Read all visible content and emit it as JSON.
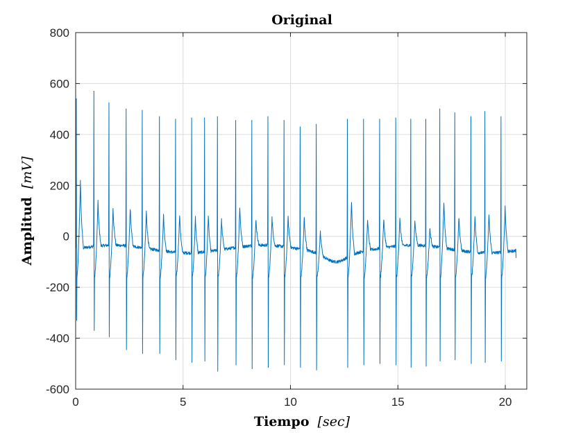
{
  "chart_data": {
    "type": "line",
    "title": "Original",
    "xlabel": {
      "main": "Tiempo",
      "unit": "[sec]"
    },
    "ylabel": {
      "main": "Amplitud",
      "unit": "[mV]"
    },
    "xlim": [
      0,
      21
    ],
    "ylim": [
      -600,
      800
    ],
    "xticks": [
      0,
      5,
      10,
      15,
      20
    ],
    "yticks": [
      -600,
      -400,
      -200,
      0,
      200,
      400,
      600,
      800
    ],
    "grid": true,
    "line_color": "#0072BD",
    "series": [
      {
        "beats": [
          {
            "t": 0.03,
            "peak": 540,
            "trough": -330,
            "twave": 235
          },
          {
            "t": 0.85,
            "peak": 570,
            "trough": -370,
            "twave": 150
          },
          {
            "t": 1.55,
            "peak": 525,
            "trough": -395,
            "twave": 125
          },
          {
            "t": 2.35,
            "peak": 500,
            "trough": -445,
            "twave": 125
          },
          {
            "t": 3.1,
            "peak": 495,
            "trough": -460,
            "twave": 110
          },
          {
            "t": 3.9,
            "peak": 470,
            "trough": -460,
            "twave": 95
          },
          {
            "t": 4.65,
            "peak": 460,
            "trough": -485,
            "twave": 100
          },
          {
            "t": 5.4,
            "peak": 465,
            "trough": -495,
            "twave": 90
          },
          {
            "t": 6.0,
            "peak": 465,
            "trough": -490,
            "twave": 95
          },
          {
            "t": 6.6,
            "peak": 470,
            "trough": -530,
            "twave": 75
          },
          {
            "t": 7.45,
            "peak": 455,
            "trough": -505,
            "twave": 130
          },
          {
            "t": 8.2,
            "peak": 455,
            "trough": -520,
            "twave": 80
          },
          {
            "t": 8.95,
            "peak": 470,
            "trough": -515,
            "twave": 85
          },
          {
            "t": 9.7,
            "peak": 455,
            "trough": -505,
            "twave": 85
          },
          {
            "t": 10.45,
            "peak": 430,
            "trough": -515,
            "twave": 85
          },
          {
            "t": 11.2,
            "peak": 440,
            "trough": -525,
            "twave": 25
          },
          {
            "t": 12.65,
            "peak": 460,
            "trough": -515,
            "twave": 155
          },
          {
            "t": 13.4,
            "peak": 460,
            "trough": -505,
            "twave": 80
          },
          {
            "t": 14.15,
            "peak": 460,
            "trough": -500,
            "twave": 80
          },
          {
            "t": 14.9,
            "peak": 465,
            "trough": -505,
            "twave": 80
          },
          {
            "t": 15.6,
            "peak": 460,
            "trough": -515,
            "twave": 75
          },
          {
            "t": 16.3,
            "peak": 460,
            "trough": -510,
            "twave": 40
          },
          {
            "t": 16.95,
            "peak": 500,
            "trough": -490,
            "twave": 150
          },
          {
            "t": 17.65,
            "peak": 485,
            "trough": -485,
            "twave": 85
          },
          {
            "t": 18.4,
            "peak": 470,
            "trough": -500,
            "twave": 95
          },
          {
            "t": 19.05,
            "peak": 490,
            "trough": -495,
            "twave": 100
          },
          {
            "t": 19.8,
            "peak": 470,
            "trough": -490,
            "twave": 130
          }
        ],
        "end_t": 20.5,
        "end_value": -85
      }
    ]
  }
}
